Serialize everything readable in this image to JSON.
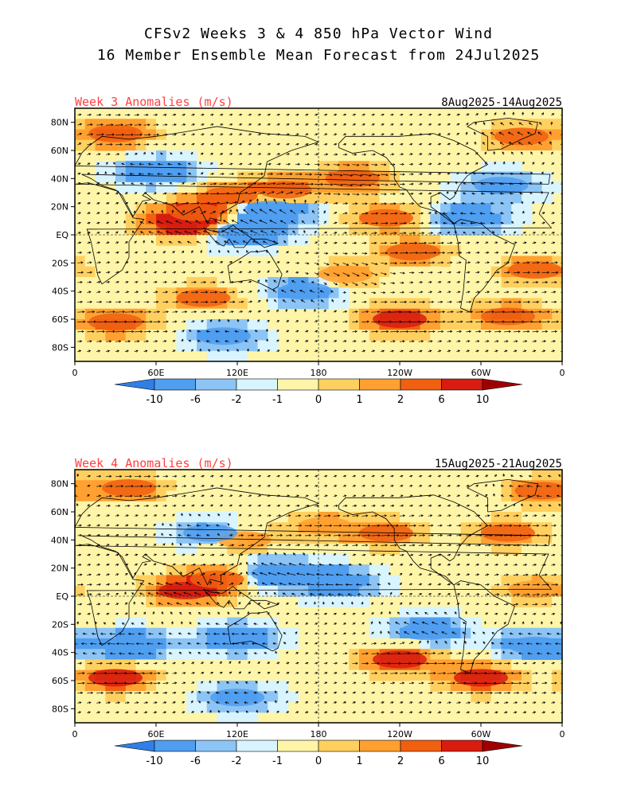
{
  "figure": {
    "title_line1": "CFSv2 Weeks 3 & 4 850 hPa Vector Wind",
    "title_line2": "16 Member Ensemble Mean Forecast from 24Jul2025"
  },
  "colors": {
    "palette": [
      "#2f7fe6",
      "#4f9ef0",
      "#8cc4f5",
      "#d8f4ff",
      "#fff5a8",
      "#ffd060",
      "#ffa030",
      "#f06010",
      "#d81c10",
      "#a00000"
    ],
    "coastline": "#000000",
    "vector": "#000000",
    "title_red": "#ff4040"
  },
  "chart_data": [
    {
      "type": "map",
      "variable": "850 hPa vector wind anomaly",
      "units": "m/s",
      "title": "Week 3 Anomalies (m/s)",
      "date_range": "8Aug2025-14Aug2025",
      "lat_labels": [
        "80N",
        "60N",
        "40N",
        "20N",
        "EQ",
        "20S",
        "40S",
        "60S",
        "80S"
      ],
      "lat_values": [
        80,
        60,
        40,
        20,
        0,
        -20,
        -40,
        -60,
        -80
      ],
      "lon_labels": [
        "0",
        "60E",
        "120E",
        "180",
        "120W",
        "60W",
        "0"
      ],
      "lon_values": [
        0,
        60,
        120,
        180,
        240,
        300,
        360
      ],
      "lat_range": [
        -90,
        90
      ],
      "lon_range": [
        0,
        360
      ],
      "features": [
        {
          "lon": 80,
          "lat": 8,
          "value": 8,
          "u": -6,
          "v": 1
        },
        {
          "lon": 90,
          "lat": 16,
          "value": 5,
          "u": 5,
          "v": 0
        },
        {
          "lon": 115,
          "lat": 28,
          "value": 4,
          "u": 4,
          "v": 0
        },
        {
          "lon": 145,
          "lat": 18,
          "value": -6,
          "u": -5,
          "v": 2
        },
        {
          "lon": 125,
          "lat": 2,
          "value": -5,
          "u": -4,
          "v": 1
        },
        {
          "lon": 155,
          "lat": 32,
          "value": 5,
          "u": 4,
          "v": 0
        },
        {
          "lon": 205,
          "lat": 40,
          "value": 5,
          "u": 5,
          "v": -1
        },
        {
          "lon": 230,
          "lat": 12,
          "value": 4,
          "u": 3,
          "v": 0
        },
        {
          "lon": 250,
          "lat": -12,
          "value": 4,
          "u": 4,
          "v": 0
        },
        {
          "lon": 200,
          "lat": -28,
          "value": 3,
          "u": 3,
          "v": -2
        },
        {
          "lon": 170,
          "lat": -40,
          "value": -4,
          "u": -3,
          "v": 1
        },
        {
          "lon": 95,
          "lat": -45,
          "value": 4,
          "u": 3,
          "v": 0
        },
        {
          "lon": 30,
          "lat": -62,
          "value": 5,
          "u": 6,
          "v": 0
        },
        {
          "lon": 240,
          "lat": -60,
          "value": 6,
          "u": 7,
          "v": 0
        },
        {
          "lon": 320,
          "lat": -58,
          "value": 5,
          "u": 6,
          "v": 0
        },
        {
          "lon": 30,
          "lat": 72,
          "value": 5,
          "u": 4,
          "v": 0
        },
        {
          "lon": 330,
          "lat": 70,
          "value": 4,
          "u": -3,
          "v": 1
        },
        {
          "lon": 60,
          "lat": 45,
          "value": -4,
          "u": -3,
          "v": 0
        },
        {
          "lon": 110,
          "lat": -72,
          "value": -3,
          "u": -2,
          "v": 0
        },
        {
          "lon": 340,
          "lat": -25,
          "value": 4,
          "u": 3,
          "v": 0
        },
        {
          "lon": 290,
          "lat": 12,
          "value": -4,
          "u": -3,
          "v": 0
        },
        {
          "lon": 315,
          "lat": 35,
          "value": -3,
          "u": -2,
          "v": 0
        }
      ]
    },
    {
      "type": "map",
      "variable": "850 hPa vector wind anomaly",
      "units": "m/s",
      "title": "Week 4 Anomalies (m/s)",
      "date_range": "15Aug2025-21Aug2025",
      "lat_labels": [
        "80N",
        "60N",
        "40N",
        "20N",
        "EQ",
        "20S",
        "40S",
        "60S",
        "80S"
      ],
      "lat_values": [
        80,
        60,
        40,
        20,
        0,
        -20,
        -40,
        -60,
        -80
      ],
      "lon_labels": [
        "0",
        "60E",
        "120E",
        "180",
        "120W",
        "60W",
        "0"
      ],
      "lon_values": [
        0,
        60,
        120,
        180,
        240,
        300,
        360
      ],
      "lat_range": [
        -90,
        90
      ],
      "lon_range": [
        0,
        360
      ],
      "features": [
        {
          "lon": 82,
          "lat": 4,
          "value": 7,
          "u": -6,
          "v": 1
        },
        {
          "lon": 105,
          "lat": 12,
          "value": 4,
          "u": 4,
          "v": 0
        },
        {
          "lon": 150,
          "lat": 16,
          "value": -5,
          "u": -5,
          "v": 1
        },
        {
          "lon": 195,
          "lat": 10,
          "value": -4,
          "u": -4,
          "v": 0
        },
        {
          "lon": 230,
          "lat": 45,
          "value": 4,
          "u": 4,
          "v": 0
        },
        {
          "lon": 185,
          "lat": 50,
          "value": 3,
          "u": 3,
          "v": 0
        },
        {
          "lon": 125,
          "lat": 40,
          "value": 3,
          "u": 3,
          "v": 0
        },
        {
          "lon": 40,
          "lat": -35,
          "value": -5,
          "u": -5,
          "v": 0
        },
        {
          "lon": 120,
          "lat": -30,
          "value": -4,
          "u": -4,
          "v": 0
        },
        {
          "lon": 260,
          "lat": -25,
          "value": -4,
          "u": -4,
          "v": 1
        },
        {
          "lon": 240,
          "lat": -45,
          "value": 6,
          "u": 6,
          "v": 0
        },
        {
          "lon": 30,
          "lat": -58,
          "value": 6,
          "u": 7,
          "v": 0
        },
        {
          "lon": 300,
          "lat": -58,
          "value": 6,
          "u": 7,
          "v": 0
        },
        {
          "lon": 340,
          "lat": -35,
          "value": -4,
          "u": -3,
          "v": 0
        },
        {
          "lon": 340,
          "lat": 5,
          "value": 3,
          "u": 3,
          "v": 0
        },
        {
          "lon": 40,
          "lat": 77,
          "value": 4,
          "u": 4,
          "v": 0
        },
        {
          "lon": 345,
          "lat": 75,
          "value": 4,
          "u": -3,
          "v": 0
        },
        {
          "lon": 320,
          "lat": 45,
          "value": 4,
          "u": 4,
          "v": 0
        },
        {
          "lon": 100,
          "lat": 45,
          "value": -3,
          "u": -3,
          "v": 0
        },
        {
          "lon": 120,
          "lat": -72,
          "value": -3,
          "u": -2,
          "v": 0
        }
      ]
    }
  ],
  "colorbar": {
    "labels": [
      "-10",
      "-6",
      "-2",
      "-1",
      "0",
      "1",
      "2",
      "6",
      "10"
    ],
    "values": [
      -10,
      -6,
      -2,
      -1,
      0,
      1,
      2,
      6,
      10
    ]
  }
}
